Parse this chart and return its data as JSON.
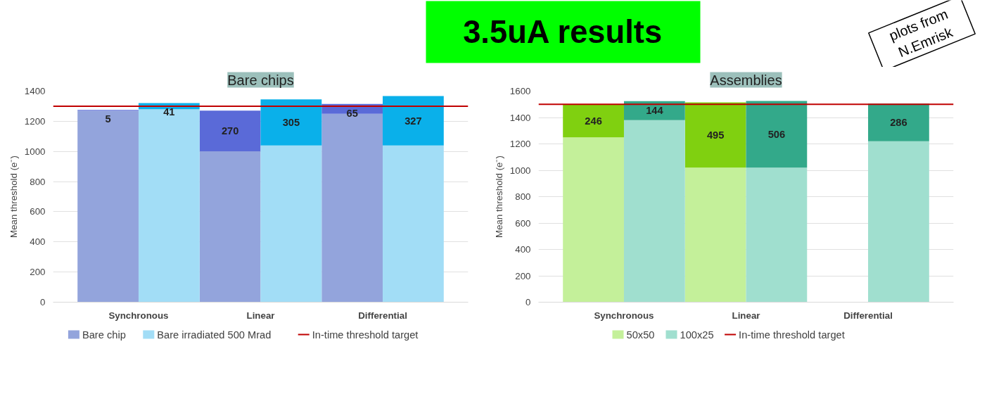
{
  "chart_data": [
    {
      "type": "bar",
      "title": "Bare chips",
      "annotations": [
        "3.5uA results"
      ],
      "ylabel": "Mean threshold (e⁻)",
      "stacked": true,
      "categories": [
        "Synchronous",
        null,
        "Linear",
        null,
        "Differential",
        null
      ],
      "series": [
        {
          "name": "Bare chip",
          "color": "#93a4dc",
          "values": [
            1270,
            null,
            1000,
            null,
            1250,
            null
          ]
        },
        {
          "color": "#5a6ad8",
          "values": [
            5,
            null,
            270,
            null,
            65,
            null
          ],
          "value_labels": [
            "5",
            null,
            "270",
            null,
            "65",
            null
          ]
        },
        {
          "name": "Bare irradiated 500 Mrad",
          "color": "#a2ddf6",
          "values": [
            null,
            1280,
            null,
            1040,
            null,
            1040
          ]
        },
        {
          "color": "#0ab0ea",
          "values": [
            null,
            41,
            null,
            305,
            null,
            327
          ],
          "value_labels": [
            null,
            "41",
            null,
            "305",
            null,
            "327"
          ]
        }
      ],
      "ref_lines": [
        {
          "axis": "y",
          "value": 1300,
          "label": "In-time threshold target",
          "color": "#c00000"
        }
      ],
      "ylim": [
        0,
        1400
      ],
      "yticks": [
        0,
        200,
        400,
        600,
        800,
        1000,
        1200,
        1400
      ],
      "grid": "y",
      "legend": "bottom"
    },
    {
      "type": "bar",
      "title": "Assemblies",
      "annotations": [
        "plots from\nN.Emrisk"
      ],
      "ylabel": "Mean threshold (e⁻)",
      "stacked": true,
      "categories": [
        "Synchronous",
        null,
        "Linear",
        null,
        "Differential",
        null
      ],
      "series": [
        {
          "name": "50x50",
          "color": "#c4f09a",
          "values": [
            1250,
            null,
            1020,
            null,
            null,
            null
          ]
        },
        {
          "color": "#80d010",
          "values": [
            246,
            null,
            495,
            null,
            null,
            null
          ],
          "value_labels": [
            "246",
            null,
            "495",
            null,
            null,
            null
          ]
        },
        {
          "name": "100x25",
          "color": "#a0dfcf",
          "values": [
            null,
            1380,
            null,
            1020,
            null,
            1220
          ]
        },
        {
          "color": "#33a98a",
          "values": [
            null,
            144,
            null,
            506,
            null,
            286
          ],
          "value_labels": [
            null,
            "144",
            null,
            "506",
            null,
            "286"
          ]
        }
      ],
      "ref_lines": [
        {
          "axis": "y",
          "value": 1500,
          "label": "In-time threshold target",
          "color": "#c00000"
        }
      ],
      "ylim": [
        0,
        1600
      ],
      "yticks": [
        0,
        200,
        400,
        600,
        800,
        1000,
        1200,
        1400,
        1600
      ],
      "grid": "y",
      "legend": "bottom"
    }
  ]
}
